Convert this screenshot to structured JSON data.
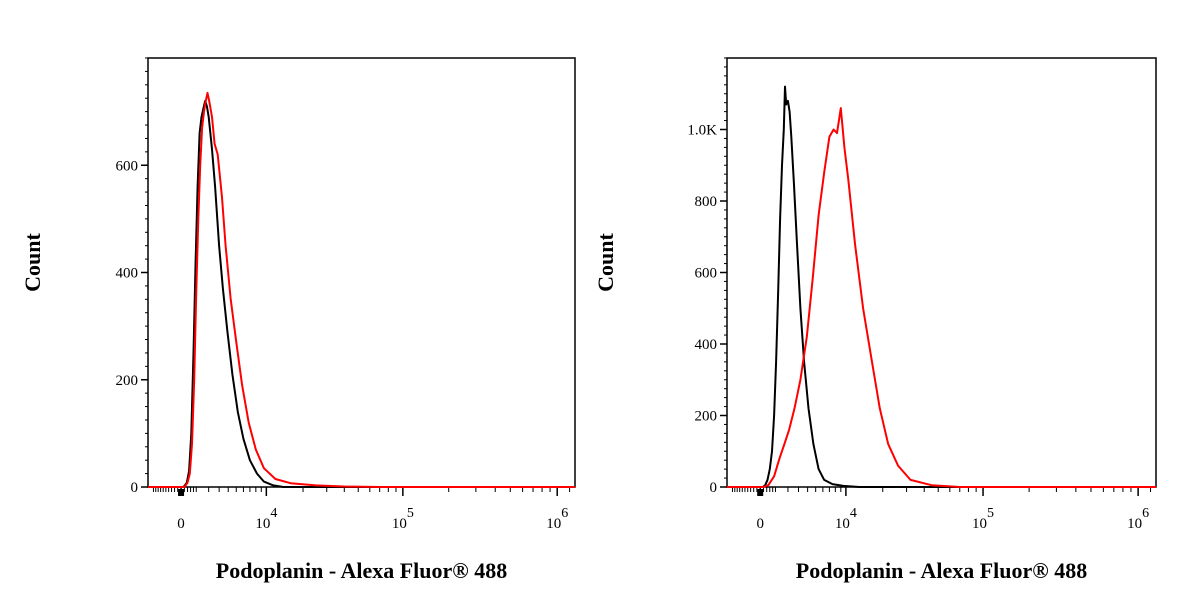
{
  "chart_data": [
    {
      "type": "line",
      "xlabel": "Podoplanin - Alexa Fluor® 488",
      "ylabel": "Count",
      "x_scale": "biexponential",
      "xlim": [
        -2500,
        1300000
      ],
      "ylim": [
        0,
        800
      ],
      "x_ticks": [
        {
          "value": 0,
          "base": "0",
          "exp": ""
        },
        {
          "value": 10000,
          "base": "10",
          "exp": "4"
        },
        {
          "value": 100000,
          "base": "10",
          "exp": "5"
        },
        {
          "value": 1000000,
          "base": "10",
          "exp": "6"
        }
      ],
      "y_ticks": [
        {
          "value": 0,
          "label": "0"
        },
        {
          "value": 200,
          "label": "200"
        },
        {
          "value": 400,
          "label": "400"
        },
        {
          "value": 600,
          "label": "600"
        }
      ],
      "series": [
        {
          "color": "#000000",
          "points": [
            [
              -2500,
              0
            ],
            [
              150,
              0
            ],
            [
              350,
              8
            ],
            [
              500,
              30
            ],
            [
              650,
              100
            ],
            [
              800,
              250
            ],
            [
              950,
              420
            ],
            [
              1100,
              560
            ],
            [
              1250,
              660
            ],
            [
              1400,
              690
            ],
            [
              1550,
              705
            ],
            [
              1700,
              720
            ],
            [
              1850,
              710
            ],
            [
              2000,
              690
            ],
            [
              2300,
              630
            ],
            [
              2600,
              560
            ],
            [
              3000,
              450
            ],
            [
              3400,
              370
            ],
            [
              3900,
              290
            ],
            [
              4500,
              210
            ],
            [
              5200,
              140
            ],
            [
              6000,
              90
            ],
            [
              7000,
              50
            ],
            [
              8200,
              25
            ],
            [
              9500,
              10
            ],
            [
              11500,
              3
            ],
            [
              14000,
              0
            ],
            [
              1300000,
              0
            ]
          ]
        },
        {
          "color": "#ff0000",
          "points": [
            [
              -2500,
              0
            ],
            [
              200,
              0
            ],
            [
              400,
              8
            ],
            [
              550,
              25
            ],
            [
              700,
              80
            ],
            [
              850,
              200
            ],
            [
              1000,
              360
            ],
            [
              1150,
              500
            ],
            [
              1300,
              600
            ],
            [
              1450,
              670
            ],
            [
              1600,
              700
            ],
            [
              1750,
              720
            ],
            [
              1900,
              735
            ],
            [
              2050,
              720
            ],
            [
              2300,
              690
            ],
            [
              2550,
              640
            ],
            [
              2850,
              620
            ],
            [
              3300,
              540
            ],
            [
              3700,
              450
            ],
            [
              4300,
              350
            ],
            [
              5000,
              270
            ],
            [
              5800,
              190
            ],
            [
              6800,
              120
            ],
            [
              8000,
              70
            ],
            [
              9500,
              35
            ],
            [
              12000,
              15
            ],
            [
              16000,
              7
            ],
            [
              25000,
              3
            ],
            [
              40000,
              1
            ],
            [
              70000,
              0
            ],
            [
              1300000,
              0
            ]
          ]
        }
      ]
    },
    {
      "type": "line",
      "xlabel": "Podoplanin - Alexa Fluor® 488",
      "ylabel": "Count",
      "x_scale": "biexponential",
      "xlim": [
        -2500,
        1300000
      ],
      "ylim": [
        0,
        1200
      ],
      "x_ticks": [
        {
          "value": 0,
          "base": "0",
          "exp": ""
        },
        {
          "value": 10000,
          "base": "10",
          "exp": "4"
        },
        {
          "value": 100000,
          "base": "10",
          "exp": "5"
        },
        {
          "value": 1000000,
          "base": "10",
          "exp": "6"
        }
      ],
      "y_ticks": [
        {
          "value": 0,
          "label": "0"
        },
        {
          "value": 200,
          "label": "200"
        },
        {
          "value": 400,
          "label": "400"
        },
        {
          "value": 600,
          "label": "600"
        },
        {
          "value": 800,
          "label": "800"
        },
        {
          "value": 1000,
          "label": "1.0K"
        }
      ],
      "series": [
        {
          "color": "#000000",
          "points": [
            [
              -2500,
              0
            ],
            [
              150,
              0
            ],
            [
              300,
              5
            ],
            [
              450,
              20
            ],
            [
              600,
              50
            ],
            [
              750,
              100
            ],
            [
              900,
              200
            ],
            [
              1050,
              350
            ],
            [
              1200,
              550
            ],
            [
              1350,
              750
            ],
            [
              1500,
              900
            ],
            [
              1650,
              1000
            ],
            [
              1750,
              1120
            ],
            [
              1850,
              1070
            ],
            [
              2000,
              1080
            ],
            [
              2150,
              1050
            ],
            [
              2300,
              980
            ],
            [
              2550,
              850
            ],
            [
              2850,
              680
            ],
            [
              3200,
              500
            ],
            [
              3600,
              350
            ],
            [
              4100,
              220
            ],
            [
              4700,
              120
            ],
            [
              5400,
              50
            ],
            [
              6200,
              20
            ],
            [
              7500,
              8
            ],
            [
              9500,
              3
            ],
            [
              13000,
              0
            ],
            [
              1300000,
              0
            ]
          ]
        },
        {
          "color": "#ff0000",
          "points": [
            [
              -2500,
              0
            ],
            [
              200,
              0
            ],
            [
              500,
              5
            ],
            [
              900,
              30
            ],
            [
              1300,
              80
            ],
            [
              1700,
              120
            ],
            [
              2100,
              160
            ],
            [
              2600,
              220
            ],
            [
              3200,
              300
            ],
            [
              3900,
              420
            ],
            [
              4600,
              580
            ],
            [
              5400,
              760
            ],
            [
              6200,
              880
            ],
            [
              7000,
              980
            ],
            [
              7700,
              1000
            ],
            [
              8300,
              990
            ],
            [
              9000,
              1060
            ],
            [
              9700,
              950
            ],
            [
              10500,
              860
            ],
            [
              12000,
              680
            ],
            [
              14000,
              500
            ],
            [
              16500,
              350
            ],
            [
              19000,
              220
            ],
            [
              22000,
              120
            ],
            [
              26000,
              60
            ],
            [
              32000,
              20
            ],
            [
              45000,
              5
            ],
            [
              70000,
              0
            ],
            [
              1300000,
              0
            ]
          ]
        }
      ]
    }
  ]
}
